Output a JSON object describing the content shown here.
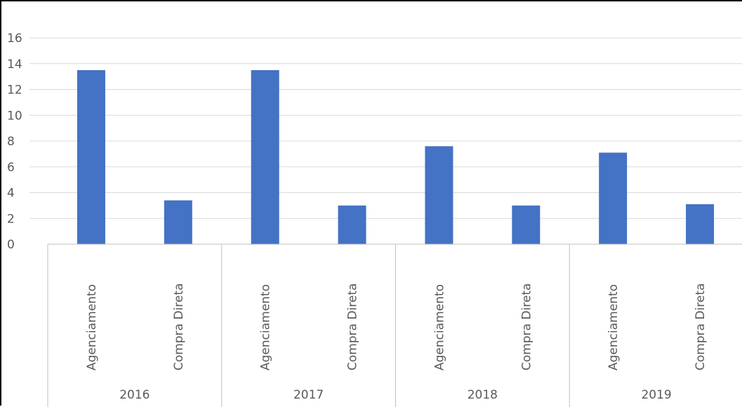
{
  "chart_data": {
    "type": "bar",
    "title": "",
    "xlabel": "",
    "ylabel": "",
    "ylim": [
      0,
      16
    ],
    "yticks": [
      0,
      2,
      4,
      6,
      8,
      10,
      12,
      14,
      16
    ],
    "grid": true,
    "legend": "none",
    "groups": [
      "2016",
      "2017",
      "2018",
      "2019"
    ],
    "categories": [
      "Agenciamento",
      "Compra Direta",
      "Agenciamento",
      "Compra Direta",
      "Agenciamento",
      "Compra Direta",
      "Agenciamento",
      "Compra Direta"
    ],
    "series": [
      {
        "values": [
          13.5,
          3.4,
          13.5,
          3.0,
          7.6,
          3.0,
          7.1,
          3.1
        ]
      }
    ],
    "bar_color": "#4472C4",
    "grid_color": "#D9D9D9",
    "axis_color": "#BFBFBF"
  }
}
